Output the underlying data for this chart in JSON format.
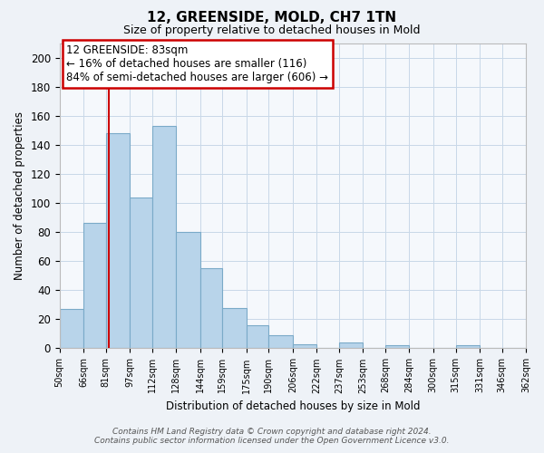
{
  "title": "12, GREENSIDE, MOLD, CH7 1TN",
  "subtitle": "Size of property relative to detached houses in Mold",
  "xlabel": "Distribution of detached houses by size in Mold",
  "ylabel": "Number of detached properties",
  "bar_values": [
    27,
    86,
    148,
    104,
    153,
    80,
    55,
    28,
    16,
    9,
    3,
    0,
    4,
    0,
    2,
    0,
    0,
    2,
    0,
    0
  ],
  "bin_labels": [
    "50sqm",
    "66sqm",
    "81sqm",
    "97sqm",
    "112sqm",
    "128sqm",
    "144sqm",
    "159sqm",
    "175sqm",
    "190sqm",
    "206sqm",
    "222sqm",
    "237sqm",
    "253sqm",
    "268sqm",
    "284sqm",
    "300sqm",
    "315sqm",
    "331sqm",
    "346sqm",
    "362sqm"
  ],
  "bin_edges": [
    50,
    66,
    81,
    97,
    112,
    128,
    144,
    159,
    175,
    190,
    206,
    222,
    237,
    253,
    268,
    284,
    300,
    315,
    331,
    346,
    362
  ],
  "bar_color": "#b8d4ea",
  "bar_edge_color": "#7aaac8",
  "property_line_x": 83,
  "property_line_color": "#cc0000",
  "ylim": [
    0,
    210
  ],
  "yticks": [
    0,
    20,
    40,
    60,
    80,
    100,
    120,
    140,
    160,
    180,
    200
  ],
  "annotation_line1": "12 GREENSIDE: 83sqm",
  "annotation_line2": "← 16% of detached houses are smaller (116)",
  "annotation_line3": "84% of semi-detached houses are larger (606) →",
  "footer_line1": "Contains HM Land Registry data © Crown copyright and database right 2024.",
  "footer_line2": "Contains public sector information licensed under the Open Government Licence v3.0.",
  "background_color": "#eef2f7",
  "plot_bg_color": "#f5f8fc",
  "grid_color": "#c8d8e8"
}
